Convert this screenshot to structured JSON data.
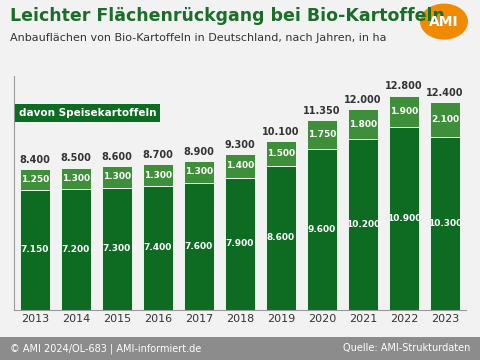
{
  "chart_data": {
    "type": "bar",
    "title": "Leichter Flächenrückgang bei Bio-Kartoffeln",
    "subtitle": "Anbauflächen von Bio-Kartoffeln in Deutschland, nach Jahren, in ha",
    "logo": "AMI",
    "footer": "© AMI 2024/OL-683 | AMI-informiert.de",
    "source": "Quelle: AMI-Strukturdaten",
    "categories": [
      "2013",
      "2014",
      "2015",
      "2016",
      "2017",
      "2018",
      "2019",
      "2020",
      "2021",
      "2022",
      "2023"
    ],
    "stacked": true,
    "data_labels": true,
    "grid": false,
    "tick_labels": "x",
    "ylim": [
      0,
      14000
    ],
    "yticks": [],
    "series": [
      {
        "name": "davon Speisekartoffeln",
        "color": "#0e6b22",
        "values": [
          7150,
          7200,
          7300,
          7400,
          7600,
          7900,
          8600,
          9600,
          10200,
          10900,
          10300
        ],
        "value_labels": [
          "7.150",
          "7.200",
          "7.300",
          "7.400",
          "7.600",
          "7.900",
          "8.600",
          "9.600",
          "10.200",
          "10.900",
          "10.300"
        ]
      },
      {
        "color": "#3f8f3a",
        "values": [
          1250,
          1300,
          1300,
          1300,
          1300,
          1400,
          1500,
          1750,
          1800,
          1900,
          2100
        ],
        "value_labels": [
          "1.250",
          "1.300",
          "1.300",
          "1.300",
          "1.300",
          "1.400",
          "1.500",
          "1.750",
          "1.800",
          "1.900",
          "2.100"
        ]
      }
    ],
    "totals": {
      "values": [
        8400,
        8500,
        8600,
        8700,
        8900,
        9300,
        10100,
        11350,
        12000,
        12800,
        12400
      ],
      "value_labels": [
        "8.400",
        "8.500",
        "8.600",
        "8.700",
        "8.900",
        "9.300",
        "10.100",
        "11.350",
        "12.000",
        "12.800",
        "12.400"
      ]
    }
  }
}
